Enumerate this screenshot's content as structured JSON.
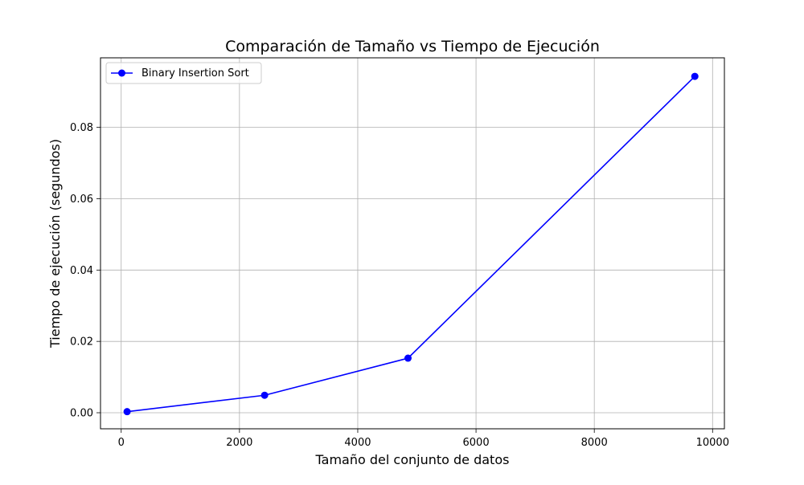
{
  "chart_data": {
    "type": "line",
    "title": "Comparación de Tamaño vs Tiempo de Ejecución",
    "xlabel": "Tamaño del conjunto de datos",
    "ylabel": "Tiempo de ejecución (segundos)",
    "xlim": [
      -350,
      10200
    ],
    "ylim": [
      -0.0045,
      0.0995
    ],
    "xticks": [
      0,
      2000,
      4000,
      6000,
      8000,
      10000
    ],
    "xtick_labels": [
      "0",
      "2000",
      "4000",
      "6000",
      "8000",
      "10000"
    ],
    "yticks": [
      0.0,
      0.02,
      0.04,
      0.06,
      0.08
    ],
    "ytick_labels": [
      "0.00",
      "0.02",
      "0.04",
      "0.06",
      "0.08"
    ],
    "grid": true,
    "legend": "top-left",
    "series": [
      {
        "name": "Binary Insertion Sort",
        "color": "#0000ff",
        "marker": "circle",
        "x": [
          100,
          2425,
          4850,
          9700
        ],
        "y": [
          0.0003,
          0.0049,
          0.0153,
          0.0943
        ]
      }
    ]
  }
}
